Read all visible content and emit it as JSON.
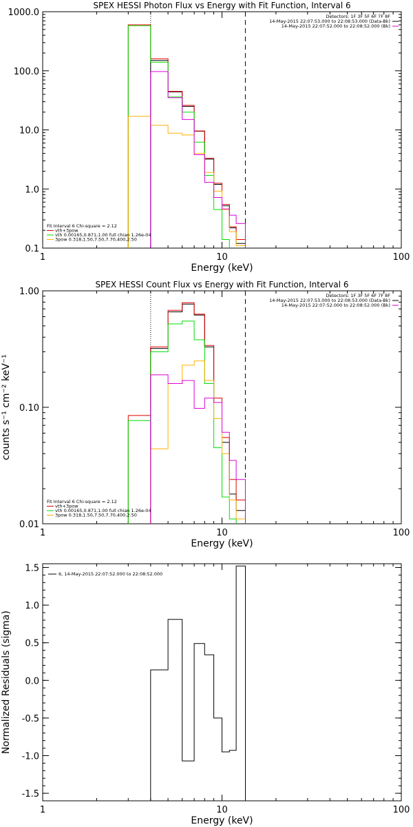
{
  "chart_data": [
    {
      "type": "line",
      "title": "SPEX HESSI Photon Flux vs Energy with Fit Function, Interval 6",
      "xlabel": "Energy (keV)",
      "ylabel": "",
      "x_scale": "log",
      "y_scale": "log",
      "xlim": [
        1,
        100
      ],
      "ylim": [
        0.1,
        1000
      ],
      "x_ticks": [
        "1",
        "10",
        "100"
      ],
      "y_ticks": [
        "0.1",
        "1.0",
        "10.0",
        "100.0",
        "1000.0"
      ],
      "markers": [
        {
          "x": 4.0,
          "style": "dotted"
        },
        {
          "x": 13.5,
          "style": "dashed"
        }
      ],
      "legend_top": [
        "Detectors: 1F 3F 5F 6F 7F 8F",
        "14-May-2015 22:07:53.000 to 22:08:53.000 (Data-Bk)",
        "14-May-2015 22:07:52.000 to 22:08:52.000 (Bk)"
      ],
      "legend_bottom": [
        "Fit Interval 6   Chi-square = 2.12",
        "vth+3pow",
        "vth 0.00165,0.871,1.00  full chian 1.26e-04",
        "3pow 0.318,1.50,7.50,7.70,400,2.50"
      ],
      "edges": [
        3.0,
        4.0,
        5.0,
        6.0,
        7.0,
        8.0,
        9.0,
        10.0,
        11.0,
        12.0,
        13.5
      ],
      "series": [
        {
          "name": "Data-Bk",
          "color": "#000000",
          "values": [
            null,
            150,
            44,
            25,
            9.5,
            3.2,
            1.2,
            0.52,
            0.22,
            0.12
          ]
        },
        {
          "name": "vth+3pow",
          "color": "#e00000",
          "values": [
            600,
            160,
            45,
            26,
            9.6,
            3.3,
            1.25,
            0.55,
            0.23,
            0.14
          ]
        },
        {
          "name": "vth",
          "color": "#00dd00",
          "values": [
            580,
            140,
            36,
            20,
            6.2,
            1.7,
            0.45,
            0.14,
            null,
            null
          ]
        },
        {
          "name": "3pow",
          "color": "#ffb000",
          "values": [
            17,
            12,
            8.8,
            8.2,
            4.0,
            1.9,
            0.92,
            0.45,
            0.19,
            0.11
          ]
        },
        {
          "name": "Bk",
          "color": "#dd00dd",
          "values": [
            null,
            97,
            35,
            15,
            3.8,
            1.3,
            0.72,
            0.46,
            0.36,
            0.26
          ]
        }
      ]
    },
    {
      "type": "line",
      "title": "SPEX HESSI Count Flux vs Energy with Fit Function, Interval 6",
      "xlabel": "Energy (keV)",
      "ylabel": "counts s⁻¹ cm⁻² keV⁻¹",
      "x_scale": "log",
      "y_scale": "log",
      "xlim": [
        1,
        100
      ],
      "ylim": [
        0.01,
        1
      ],
      "x_ticks": [
        "1",
        "10",
        "100"
      ],
      "y_ticks": [
        "0.01",
        "0.10",
        "1.00"
      ],
      "markers": [
        {
          "x": 4.0,
          "style": "dotted"
        },
        {
          "x": 13.5,
          "style": "dashed"
        }
      ],
      "legend_top": [
        "Detectors: 1F 3F 5F 6F 7F 8F",
        "14-May-2015 22:07:53.000 to 22:08:53.000 (Data-Bk)",
        "14-May-2015 22:07:52.000 to 22:08:52.000 (Bk)"
      ],
      "legend_bottom": [
        "Fit Interval 6   Chi-square = 2.12",
        "vth+3pow",
        "vth 0.00165,0.871,1.00  full chian 1.26e-04",
        "3pow 0.318,1.50,7.50,7.70,400,2.50"
      ],
      "edges": [
        3.0,
        4.0,
        5.0,
        6.0,
        7.0,
        8.0,
        9.0,
        10.0,
        11.0,
        12.0,
        13.5
      ],
      "series": [
        {
          "name": "Data-Bk",
          "color": "#000000",
          "values": [
            null,
            0.32,
            0.66,
            0.77,
            0.62,
            0.33,
            0.11,
            0.05,
            0.018,
            0.013
          ]
        },
        {
          "name": "vth+3pow",
          "color": "#e00000",
          "values": [
            0.085,
            0.33,
            0.68,
            0.79,
            0.63,
            0.34,
            0.12,
            0.055,
            0.024,
            0.016
          ]
        },
        {
          "name": "vth",
          "color": "#00dd00",
          "values": [
            0.077,
            0.3,
            0.52,
            0.55,
            0.38,
            0.16,
            0.045,
            0.017,
            0.011,
            null
          ]
        },
        {
          "name": "3pow",
          "color": "#ffb000",
          "values": [
            null,
            0.044,
            0.16,
            0.23,
            0.25,
            0.17,
            0.08,
            0.04,
            0.016,
            0.011
          ]
        },
        {
          "name": "Bk",
          "color": "#dd00dd",
          "values": [
            null,
            0.19,
            0.16,
            0.17,
            0.098,
            0.12,
            0.11,
            0.061,
            0.035,
            0.024
          ]
        }
      ]
    },
    {
      "type": "line",
      "title": "",
      "xlabel": "Energy (keV)",
      "ylabel": "Normalized Residuals (sigma)",
      "x_scale": "log",
      "y_scale": "linear",
      "xlim": [
        1,
        100
      ],
      "ylim": [
        -1.6,
        1.55
      ],
      "x_ticks": [
        "1",
        "10",
        "100"
      ],
      "y_ticks": [
        "-1.5",
        "-1.0",
        "-0.5",
        "0.0",
        "0.5",
        "1.0",
        "1.5"
      ],
      "legend": "6, 14-May-2015 22:07:52.000 to 22:08:52.000",
      "edges": [
        4.0,
        5.0,
        6.0,
        7.0,
        8.0,
        9.0,
        10.0,
        11.0,
        12.0,
        13.5
      ],
      "series": [
        {
          "name": "residuals",
          "color": "#000000",
          "values": [
            0.14,
            0.81,
            -1.07,
            0.49,
            0.34,
            -0.5,
            -0.95,
            -0.93,
            1.52
          ]
        }
      ]
    }
  ]
}
